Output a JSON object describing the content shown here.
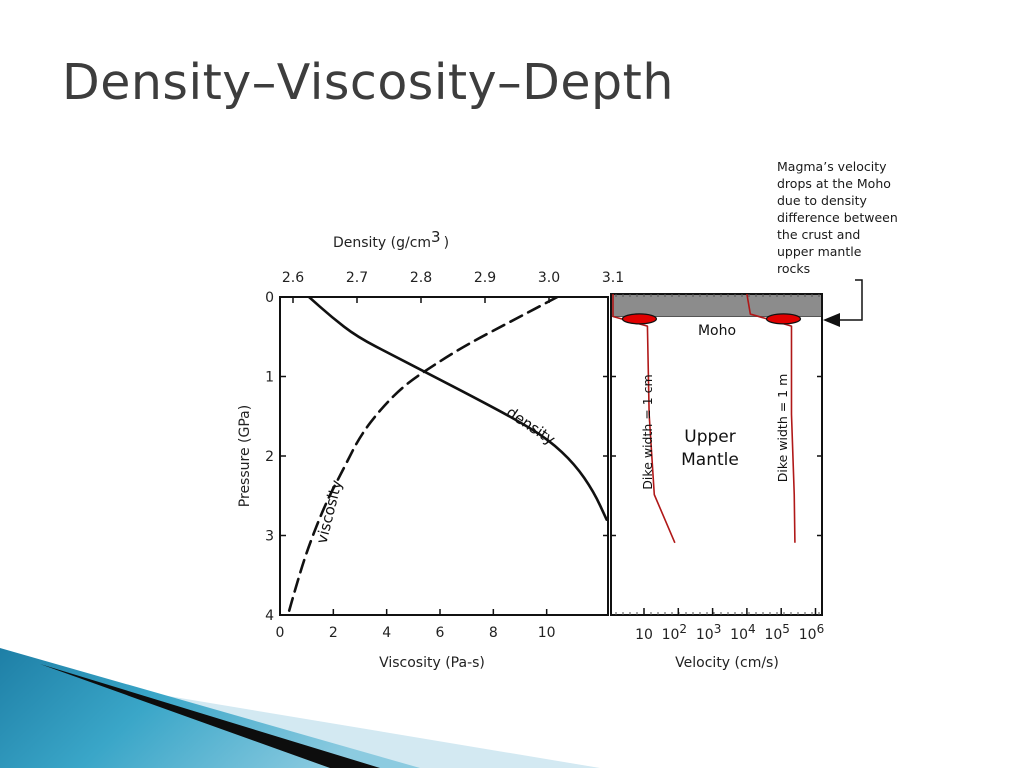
{
  "slide": {
    "title": "Density–Viscosity–Depth"
  },
  "annotation": {
    "lines": [
      "Magma’s velocity",
      "drops at the Moho",
      "due to density",
      "difference between",
      "the crust and",
      "upper mantle",
      "rocks"
    ]
  },
  "colors": {
    "curve": "#111111",
    "crust_fill": "#8c8c8c",
    "velocity_curve": "#b01818",
    "dike_marker": "#e00000",
    "footer_dark": "#0d0d0d",
    "footer_blue": "#3aa6c8",
    "footer_light": "#d3e9f2"
  },
  "chart_data": [
    {
      "type": "line",
      "title": "",
      "ylabel": "Pressure (GPa)",
      "ylim": [
        0,
        4
      ],
      "y_ticks": [
        "0",
        "1",
        "2",
        "3",
        "4"
      ],
      "xlabel": "Viscosity (Pa-s)",
      "xlim": [
        0,
        12
      ],
      "x_ticks": [
        {
          "v": 0,
          "label": "0"
        },
        {
          "v": 2,
          "label": "2"
        },
        {
          "v": 4,
          "label": "4"
        },
        {
          "v": 6,
          "label": "6"
        },
        {
          "v": 8,
          "label": "8"
        },
        {
          "v": 10,
          "label": "10"
        }
      ],
      "x2label_text": "Density (g/cm",
      "x2label_sup": "3",
      "x2label_close": ")",
      "x2lim": [
        2.6,
        3.1
      ],
      "x2_ticks": [
        {
          "v": 2.6,
          "label": "2.6"
        },
        {
          "v": 2.7,
          "label": "2.7"
        },
        {
          "v": 2.8,
          "label": "2.8"
        },
        {
          "v": 2.9,
          "label": "2.9"
        },
        {
          "v": 3.0,
          "label": "3.0"
        },
        {
          "v": 3.1,
          "label": "3.1"
        }
      ],
      "series": [
        {
          "name": "density",
          "axis": "density",
          "style": "solid",
          "points": [
            [
              2.625,
              0.0
            ],
            [
              2.66,
              0.25
            ],
            [
              2.7,
              0.5
            ],
            [
              2.76,
              0.75
            ],
            [
              2.82,
              1.0
            ],
            [
              2.88,
              1.25
            ],
            [
              2.95,
              1.55
            ],
            [
              3.0,
              1.8
            ],
            [
              3.04,
              2.1
            ],
            [
              3.07,
              2.45
            ],
            [
              3.09,
              2.8
            ]
          ],
          "label": "density"
        },
        {
          "name": "viscosity",
          "axis": "viscosity",
          "style": "dashed",
          "points": [
            [
              10.4,
              0.0
            ],
            [
              8.7,
              0.3
            ],
            [
              7.0,
              0.6
            ],
            [
              5.8,
              0.85
            ],
            [
              4.7,
              1.1
            ],
            [
              3.8,
              1.4
            ],
            [
              3.0,
              1.75
            ],
            [
              2.4,
              2.15
            ],
            [
              1.7,
              2.6
            ],
            [
              1.0,
              3.2
            ],
            [
              0.55,
              3.7
            ],
            [
              0.3,
              4.0
            ]
          ],
          "label": "viscosity"
        }
      ]
    },
    {
      "type": "line",
      "title": "",
      "xlabel": "Velocity (cm/s)",
      "xscale": "log",
      "xlim": [
        1,
        6
      ],
      "x_ticks": [
        {
          "v": 1,
          "base": "10",
          "exp": ""
        },
        {
          "v": 2,
          "base": "10",
          "exp": "2"
        },
        {
          "v": 3,
          "base": "10",
          "exp": "3"
        },
        {
          "v": 4,
          "base": "10",
          "exp": "4"
        },
        {
          "v": 5,
          "base": "10",
          "exp": "5"
        },
        {
          "v": 6,
          "base": "10",
          "exp": "6"
        }
      ],
      "ylim": [
        0,
        4
      ],
      "crust_label": "",
      "moho_label": "Moho",
      "moho_depth": 0.28,
      "region_label_lines": [
        "Upper",
        "Mantle"
      ],
      "series": [
        {
          "name": "Dike width = 1 cm",
          "points": [
            [
              0.0,
              0.0
            ],
            [
              0.0,
              0.28
            ],
            [
              1.1,
              0.4
            ],
            [
              1.15,
              1.5
            ],
            [
              1.3,
              2.5
            ],
            [
              1.9,
              3.1
            ]
          ]
        },
        {
          "name": "Dike width = 1 m",
          "points": [
            [
              4.0,
              0.0
            ],
            [
              4.1,
              0.25
            ],
            [
              5.3,
              0.4
            ],
            [
              5.3,
              1.5
            ],
            [
              5.38,
              2.5
            ],
            [
              5.4,
              3.1
            ]
          ]
        }
      ]
    }
  ]
}
